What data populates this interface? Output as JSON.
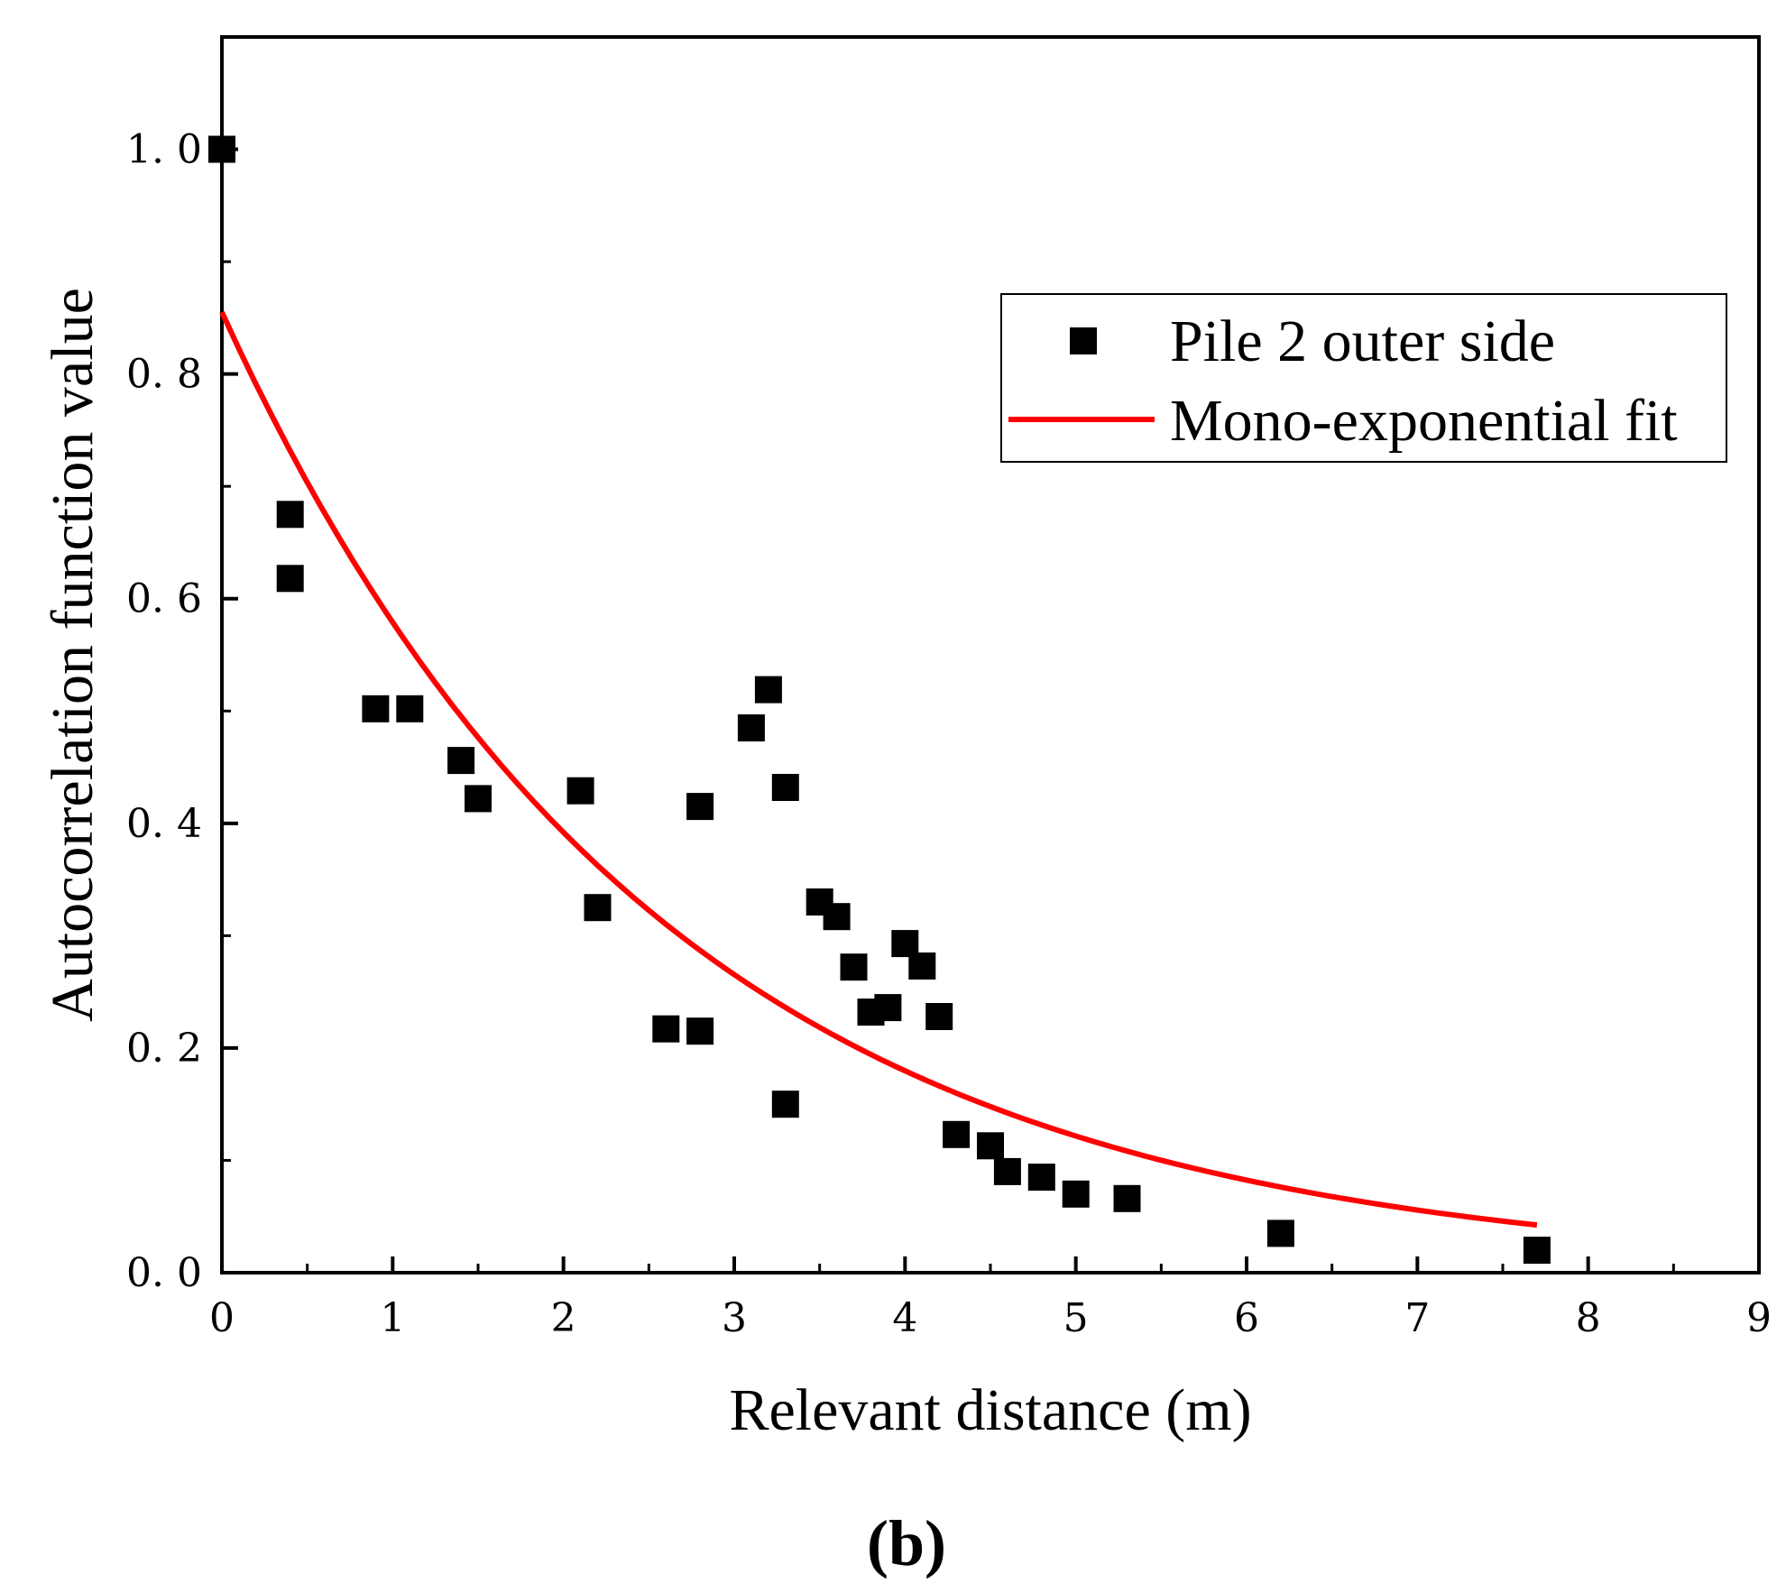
{
  "chart_data": {
    "type": "scatter",
    "title": "",
    "xlabel": "Relevant distance (m)",
    "ylabel": "Autocorrelation function value",
    "xlim": [
      0,
      9
    ],
    "ylim": [
      0,
      1.1
    ],
    "xticks": [
      0,
      1,
      2,
      3,
      4,
      5,
      6,
      7,
      8,
      9
    ],
    "xtick_labels": [
      "0",
      "1",
      "2",
      "3",
      "4",
      "5",
      "6",
      "7",
      "8",
      "9"
    ],
    "yticks": [
      0.0,
      0.2,
      0.4,
      0.6,
      0.8,
      1.0
    ],
    "ytick_labels": [
      "0. 0",
      "0. 2",
      "0. 4",
      "0. 6",
      "0. 8",
      "1. 0"
    ],
    "grid": false,
    "legend_position": "top-right",
    "series": [
      {
        "name": "Pile 2 outer side",
        "kind": "scatter",
        "marker": "square",
        "color": "#000000",
        "x": [
          0.0,
          0.4,
          0.4,
          0.9,
          1.1,
          1.4,
          1.5,
          2.1,
          2.2,
          2.6,
          2.8,
          2.8,
          3.1,
          3.2,
          3.3,
          3.3,
          3.5,
          3.6,
          3.7,
          3.8,
          3.9,
          4.0,
          4.1,
          4.2,
          4.3,
          4.5,
          4.6,
          4.8,
          5.0,
          5.3,
          6.2,
          7.7
        ],
        "y": [
          1.0,
          0.675,
          0.618,
          0.502,
          0.502,
          0.456,
          0.422,
          0.429,
          0.325,
          0.217,
          0.415,
          0.215,
          0.485,
          0.519,
          0.432,
          0.15,
          0.33,
          0.317,
          0.272,
          0.232,
          0.236,
          0.293,
          0.273,
          0.228,
          0.123,
          0.113,
          0.09,
          0.085,
          0.07,
          0.066,
          0.035,
          0.02
        ]
      },
      {
        "name": "Mono-exponential fit",
        "kind": "line",
        "color": "#ff0000",
        "function": "a*exp(-b*x)",
        "params": {
          "a": 0.855,
          "b": 0.39
        },
        "x_range": [
          0,
          7.7
        ],
        "samples": 80
      }
    ],
    "panel_label": "(b)"
  }
}
